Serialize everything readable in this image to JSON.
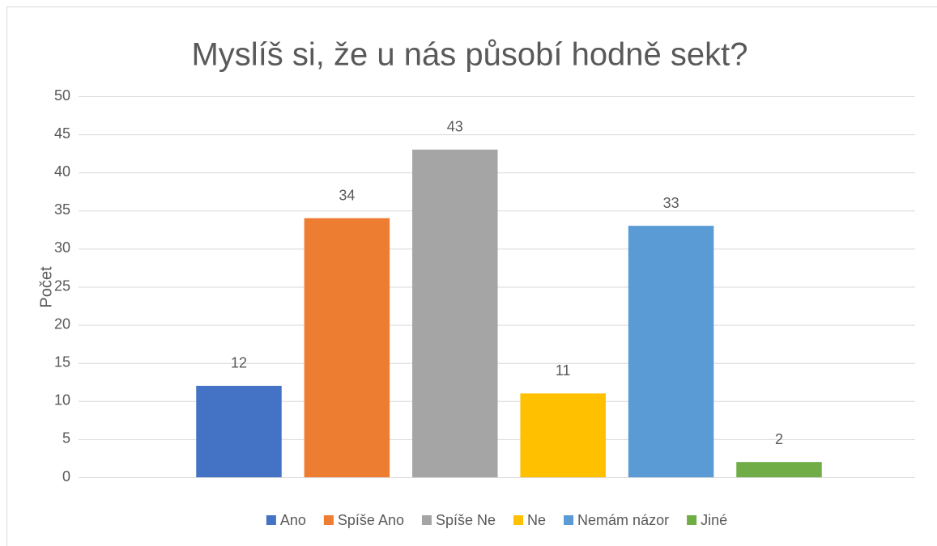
{
  "chart_data": {
    "type": "bar",
    "title": "Myslíš si, že u nás působí hodně sekt?",
    "ylabel": "Počet",
    "series": [
      {
        "name": "Ano",
        "color": "#4472c4",
        "values": [
          12
        ]
      },
      {
        "name": "Spíše Ano",
        "color": "#ed7d31",
        "values": [
          34
        ]
      },
      {
        "name": "Spíše Ne",
        "color": "#a5a5a5",
        "values": [
          43
        ]
      },
      {
        "name": "Ne",
        "color": "#ffc000",
        "values": [
          11
        ]
      },
      {
        "name": "Nemám názor",
        "color": "#5b9bd5",
        "values": [
          33
        ]
      },
      {
        "name": "Jiné",
        "color": "#70ad47",
        "values": [
          2
        ]
      }
    ],
    "ylim": [
      0,
      50
    ],
    "yticks": [
      0,
      5,
      10,
      15,
      20,
      25,
      30,
      35,
      40,
      45,
      50
    ],
    "grid": true,
    "legend": "bottom"
  }
}
